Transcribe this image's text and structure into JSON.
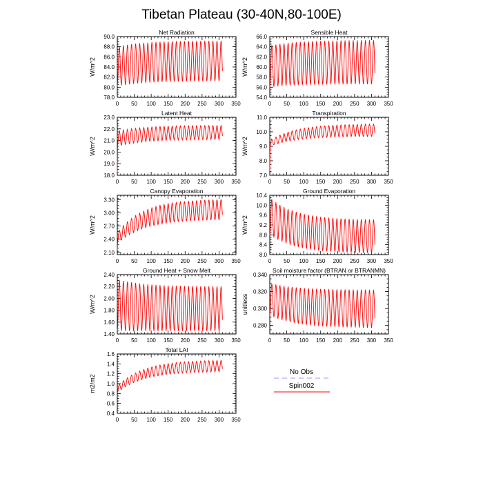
{
  "page_title": "Tibetan Plateau (30-40N,80-100E)",
  "colors": {
    "series": "#ff0000",
    "obs": "#9999ff",
    "axis": "#000000"
  },
  "legend": {
    "entries": [
      {
        "label": "No Obs",
        "style": "dashed",
        "color": "#9999ff"
      },
      {
        "label": "Spin002",
        "style": "solid",
        "color": "#ff0000"
      }
    ]
  },
  "chart_data": [
    {
      "type": "line",
      "title": "Net Radiation",
      "ylabel": "W/m^2",
      "xlim": [
        0,
        350
      ],
      "ylim": [
        78,
        90
      ],
      "xticks": [
        "0",
        "50",
        "100",
        "150",
        "200",
        "250",
        "300",
        "350"
      ],
      "yticks": [
        "78.0",
        "80.0",
        "82.0",
        "84.0",
        "86.0",
        "88.0",
        "90.0"
      ],
      "series": [
        {
          "name": "Spin002",
          "x_end": 310,
          "cycle": [
            {
              "month": 1,
              "value": 80.2
            },
            {
              "month": 7,
              "value": 88.0
            }
          ],
          "cycle_end": [
            {
              "month": 1,
              "value": 81.2
            },
            {
              "month": 7,
              "value": 89.2
            }
          ],
          "monthly": [
            [
              0,
              80.2
            ],
            [
              6,
              88.0
            ],
            [
              306,
              81.2
            ],
            [
              300,
              89.2
            ]
          ],
          "upper_start": 88.0,
          "upper_end": 89.2,
          "lower_start": 80.2,
          "lower_end": 81.2
        }
      ]
    },
    {
      "type": "line",
      "title": "Sensible Heat",
      "ylabel": "W/m^2",
      "xlim": [
        0,
        350
      ],
      "ylim": [
        54,
        66
      ],
      "xticks": [
        "0",
        "50",
        "100",
        "150",
        "200",
        "250",
        "300",
        "350"
      ],
      "yticks": [
        "54.0",
        "56.0",
        "58.0",
        "60.0",
        "62.0",
        "64.0",
        "66.0"
      ],
      "series": [
        {
          "name": "Spin002",
          "x_end": 310,
          "upper_start": 64.2,
          "upper_end": 65.3,
          "lower_start": 56.0,
          "lower_end": 56.6
        }
      ]
    },
    {
      "type": "line",
      "title": "Latent Heat",
      "ylabel": "W/m^2",
      "xlim": [
        0,
        350
      ],
      "ylim": [
        18,
        23
      ],
      "xticks": [
        "0",
        "50",
        "100",
        "150",
        "200",
        "250",
        "300",
        "350"
      ],
      "yticks": [
        "18.0",
        "19.0",
        "20.0",
        "21.0",
        "22.0",
        "23.0"
      ],
      "series": [
        {
          "name": "Spin002",
          "x_end": 310,
          "start_value": 18.2,
          "upper_start": 21.8,
          "upper_end": 22.3,
          "lower_start": 20.5,
          "lower_end": 21.1
        }
      ]
    },
    {
      "type": "line",
      "title": "Transpiration",
      "ylabel": "W/m^2",
      "xlim": [
        0,
        350
      ],
      "ylim": [
        7,
        11
      ],
      "xticks": [
        "0",
        "50",
        "100",
        "150",
        "200",
        "250",
        "300",
        "350"
      ],
      "yticks": [
        "7.0",
        "8.0",
        "9.0",
        "10.0",
        "11.0"
      ],
      "series": [
        {
          "name": "Spin002",
          "x_end": 310,
          "start_value": 7.3,
          "upper_start": 9.4,
          "upper_end": 10.55,
          "lower_start": 9.0,
          "lower_end": 9.7
        }
      ]
    },
    {
      "type": "line",
      "title": "Canopy Evaporation",
      "ylabel": "W/m^2",
      "xlim": [
        0,
        350
      ],
      "ylim": [
        2.05,
        3.4
      ],
      "xticks": [
        "0",
        "50",
        "100",
        "150",
        "200",
        "250",
        "300",
        "350"
      ],
      "yticks": [
        "2.10",
        "2.40",
        "2.70",
        "3.00",
        "3.30"
      ],
      "series": [
        {
          "name": "Spin002",
          "x_end": 310,
          "start_value": 2.15,
          "upper_start": 2.55,
          "upper_end": 3.32,
          "lower_start": 2.3,
          "lower_end": 2.85
        }
      ]
    },
    {
      "type": "line",
      "title": "Ground Evaporation",
      "ylabel": "W/m^2",
      "xlim": [
        0,
        350
      ],
      "ylim": [
        8.0,
        10.4
      ],
      "xticks": [
        "0",
        "50",
        "100",
        "150",
        "200",
        "250",
        "300",
        "350"
      ],
      "yticks": [
        "8.0",
        "8.4",
        "8.8",
        "9.2",
        "9.6",
        "10.0",
        "10.4"
      ],
      "series": [
        {
          "name": "Spin002",
          "x_end": 310,
          "upper_start": 10.3,
          "upper_end": 9.4,
          "lower_start": 8.8,
          "lower_end": 8.05
        }
      ]
    },
    {
      "type": "line",
      "title": "Ground Heat + Snow Melt",
      "ylabel": "W/m^2",
      "xlim": [
        0,
        350
      ],
      "ylim": [
        1.4,
        2.4
      ],
      "xticks": [
        "0",
        "50",
        "100",
        "150",
        "200",
        "250",
        "300",
        "350"
      ],
      "yticks": [
        "1.40",
        "1.60",
        "1.80",
        "2.00",
        "2.20",
        "2.40"
      ],
      "series": [
        {
          "name": "Spin002",
          "x_end": 310,
          "upper_start": 2.32,
          "upper_end": 2.2,
          "lower_start": 1.45,
          "lower_end": 1.45
        }
      ]
    },
    {
      "type": "line",
      "title": "Soil moisture factor (BTRAN or BTRANMN)",
      "ylabel": "unitless",
      "xlim": [
        0,
        350
      ],
      "ylim": [
        0.27,
        0.34
      ],
      "xticks": [
        "0",
        "50",
        "100",
        "150",
        "200",
        "250",
        "300",
        "350"
      ],
      "yticks": [
        "0.280",
        "0.300",
        "0.320",
        "0.340"
      ],
      "series": [
        {
          "name": "Spin002",
          "x_end": 310,
          "upper_start": 0.33,
          "upper_end": 0.322,
          "lower_start": 0.292,
          "lower_end": 0.277
        }
      ]
    },
    {
      "type": "line",
      "title": "Total LAI",
      "ylabel": "m2/m2",
      "xlim": [
        0,
        350
      ],
      "ylim": [
        0.4,
        1.6
      ],
      "xticks": [
        "0",
        "50",
        "100",
        "150",
        "200",
        "250",
        "300",
        "350"
      ],
      "yticks": [
        "0.4",
        "0.6",
        "0.8",
        "1.0",
        "1.2",
        "1.4",
        "1.6"
      ],
      "series": [
        {
          "name": "Spin002",
          "x_end": 310,
          "upper_start": 0.95,
          "upper_end": 1.48,
          "lower_start": 0.82,
          "lower_end": 1.25
        }
      ]
    }
  ]
}
